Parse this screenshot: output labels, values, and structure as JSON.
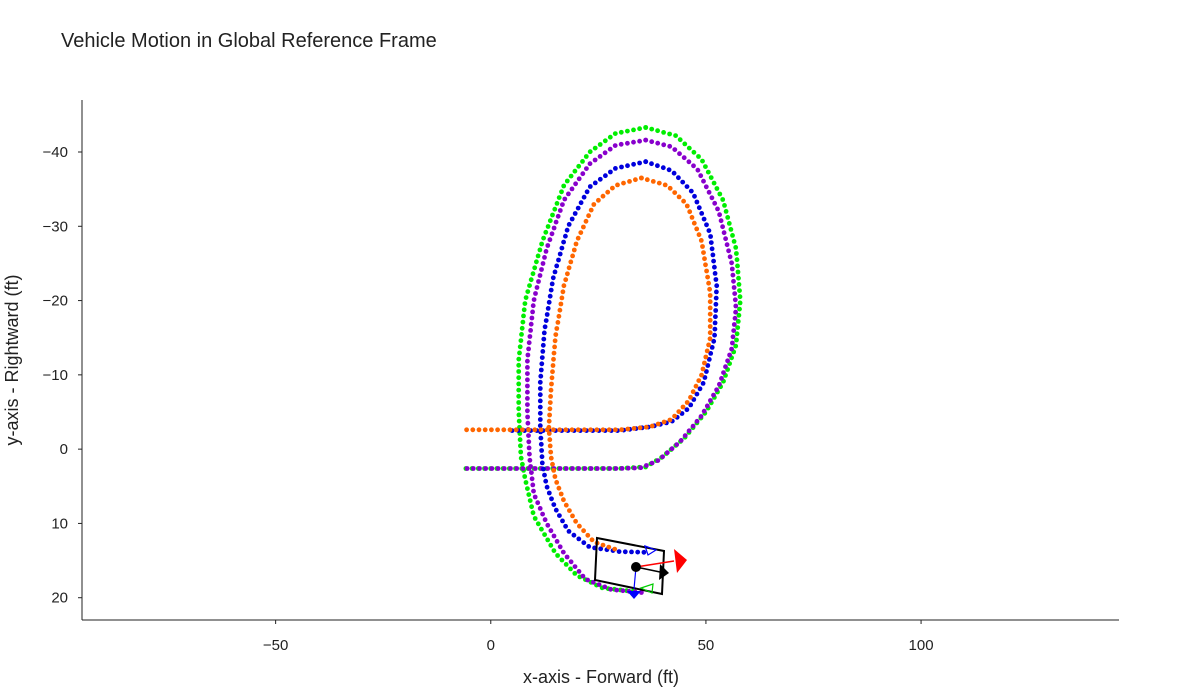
{
  "chart_data": {
    "type": "scatter",
    "title": "Vehicle Motion in Global Reference Frame",
    "xlabel": "x-axis - Forward (ft)",
    "ylabel": "y-axis - Rightward (ft)",
    "xlim": [
      -95,
      146
    ],
    "ylim": [
      23,
      -47
    ],
    "y_reversed": true,
    "grid": false,
    "xticks": [
      -50,
      0,
      50,
      100
    ],
    "xtick_labels": [
      "−50",
      "0",
      "50",
      "100"
    ],
    "yticks": [
      -40,
      -30,
      -20,
      -10,
      0,
      10,
      20
    ],
    "ytick_labels": [
      "−40",
      "−30",
      "−20",
      "−10",
      "0",
      "10",
      "20"
    ],
    "series": [
      {
        "color": "#00ee00",
        "points": [
          [
            36,
            -43.3
          ],
          [
            43,
            -42.2
          ],
          [
            49,
            -39
          ],
          [
            54,
            -33.5
          ],
          [
            57,
            -27
          ],
          [
            58,
            -20
          ],
          [
            57,
            -14
          ],
          [
            54,
            -9
          ],
          [
            50,
            -5
          ],
          [
            45,
            -1.5
          ],
          [
            40,
            1
          ],
          [
            36,
            2.4
          ],
          [
            30,
            2.6
          ],
          [
            20,
            2.6
          ],
          [
            10,
            2.6
          ],
          [
            -6,
            2.6
          ]
        ]
      },
      {
        "color": "#00ee00",
        "points": [
          [
            36,
            -43.3
          ],
          [
            29,
            -42.5
          ],
          [
            23,
            -40
          ],
          [
            17,
            -35.5
          ],
          [
            12,
            -28
          ],
          [
            8,
            -20
          ],
          [
            6.5,
            -12
          ],
          [
            6.5,
            -5
          ],
          [
            7,
            1
          ],
          [
            8,
            4
          ],
          [
            10,
            9
          ],
          [
            15,
            14
          ],
          [
            20,
            17
          ],
          [
            26,
            18.7
          ],
          [
            34,
            19.2
          ]
        ]
      },
      {
        "color": "#8800cc",
        "points": [
          [
            36,
            -41.6
          ],
          [
            42,
            -40.7
          ],
          [
            48,
            -37.7
          ],
          [
            53,
            -32
          ],
          [
            56,
            -25
          ],
          [
            57,
            -19
          ],
          [
            56,
            -13.5
          ],
          [
            53,
            -8.5
          ],
          [
            49,
            -4.5
          ],
          [
            44,
            -1
          ],
          [
            39,
            1.5
          ],
          [
            35,
            2.5
          ],
          [
            30,
            2.6
          ],
          [
            20,
            2.6
          ],
          [
            10,
            2.6
          ],
          [
            -6,
            2.6
          ]
        ]
      },
      {
        "color": "#8800cc",
        "points": [
          [
            36,
            -41.6
          ],
          [
            29,
            -40.9
          ],
          [
            23,
            -38.4
          ],
          [
            17,
            -33.5
          ],
          [
            13,
            -27
          ],
          [
            10,
            -20
          ],
          [
            8.5,
            -12
          ],
          [
            8.5,
            -5
          ],
          [
            9,
            1
          ],
          [
            10,
            6
          ],
          [
            13,
            10
          ],
          [
            17,
            14
          ],
          [
            22,
            17.5
          ],
          [
            28,
            18.9
          ],
          [
            35,
            19.3
          ]
        ]
      },
      {
        "color": "#0000dd",
        "points": [
          [
            36,
            -38.7
          ],
          [
            42,
            -37.5
          ],
          [
            47,
            -34.5
          ],
          [
            51,
            -29
          ],
          [
            52.5,
            -22
          ],
          [
            52,
            -15
          ],
          [
            49.5,
            -9
          ],
          [
            46,
            -5.5
          ],
          [
            42,
            -3.7
          ],
          [
            37,
            -3
          ],
          [
            30,
            -2.5
          ],
          [
            20,
            -2.5
          ],
          [
            12,
            -2.5
          ],
          [
            4,
            -2.5
          ]
        ]
      },
      {
        "color": "#0000dd",
        "points": [
          [
            36,
            -38.7
          ],
          [
            29,
            -37.8
          ],
          [
            23,
            -35.3
          ],
          [
            18,
            -30
          ],
          [
            14.5,
            -23
          ],
          [
            12.5,
            -16
          ],
          [
            11.5,
            -9
          ],
          [
            11.5,
            -3
          ],
          [
            12,
            2
          ],
          [
            13,
            5
          ],
          [
            15,
            8
          ],
          [
            18,
            11
          ],
          [
            23,
            13.2
          ],
          [
            30,
            13.8
          ],
          [
            37,
            13.9
          ]
        ]
      },
      {
        "color": "#ff6600",
        "points": [
          [
            35,
            -36.5
          ],
          [
            41,
            -35.5
          ],
          [
            45.5,
            -33
          ],
          [
            49,
            -28
          ],
          [
            51,
            -21
          ],
          [
            51,
            -15
          ],
          [
            49,
            -10
          ],
          [
            46,
            -6.5
          ],
          [
            42,
            -4
          ],
          [
            37,
            -3
          ],
          [
            30,
            -2.6
          ],
          [
            20,
            -2.6
          ],
          [
            10,
            -2.6
          ],
          [
            0,
            -2.6
          ],
          [
            -6,
            -2.6
          ]
        ]
      },
      {
        "color": "#ff6600",
        "points": [
          [
            35,
            -36.5
          ],
          [
            29,
            -35.5
          ],
          [
            24,
            -33
          ],
          [
            20,
            -28
          ],
          [
            17,
            -22
          ],
          [
            15,
            -15
          ],
          [
            14,
            -8
          ],
          [
            13.5,
            -3
          ],
          [
            14,
            1
          ],
          [
            15,
            4
          ],
          [
            17,
            7
          ],
          [
            20,
            10
          ],
          [
            24,
            12.5
          ],
          [
            29,
            13.5
          ]
        ]
      }
    ],
    "vehicle": {
      "center": [
        34,
        16.8
      ],
      "body_color": "#000000",
      "heading_arrow_color": "#ff0000",
      "velocity_arrow_color": "#000000",
      "lateral_arrow_color": "#0000ff",
      "front_left_wheel_color": "#0000ff",
      "front_right_wheel_color": "#00cc00"
    }
  }
}
